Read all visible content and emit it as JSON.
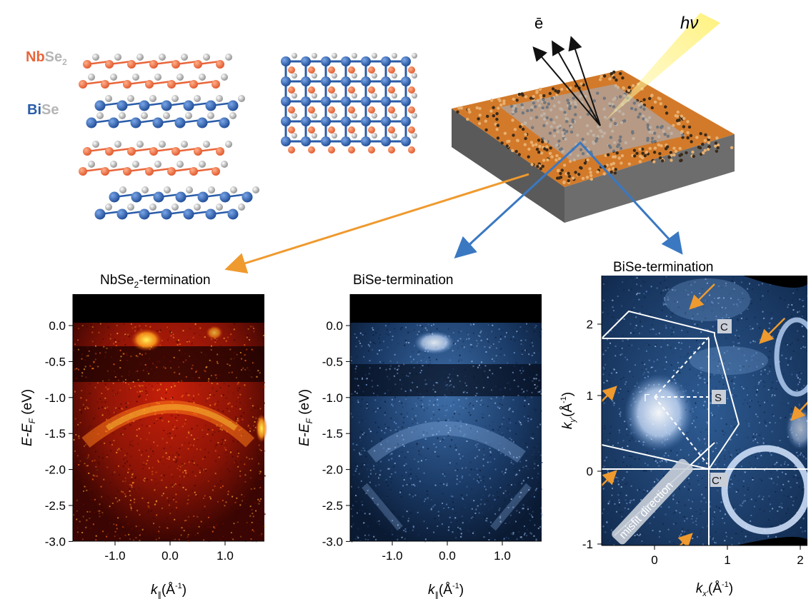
{
  "structure": {
    "nb_label": "Nb",
    "se_label_1": "Se",
    "se_sub": "2",
    "bi_label": "Bi",
    "se_label_2": "Se"
  },
  "schematic": {
    "electron": "ē",
    "photon": "hν"
  },
  "panels": {
    "p1": {
      "title_a": "NbSe",
      "title_sub": "2",
      "title_b": "-termination"
    },
    "p2": {
      "title": "BiSe-termination"
    },
    "p3": {
      "title": "BiSe-termination"
    }
  },
  "axes": {
    "energy_ylabel": "E-E",
    "energy_ylabel_sub": "F",
    "energy_ylabel_unit": " (eV)",
    "k_xlabel": "k",
    "k_xlabel_sub": "∥",
    "k_xlabel_unit": "(Å",
    "k_xlabel_exp": "-1",
    "k_xlabel_close": ")",
    "energy_ticks": [
      "0.0",
      "-0.5",
      "-1.0",
      "-1.5",
      "-2.0",
      "-2.5",
      "-3.0"
    ],
    "k_ticks": [
      "-1.0",
      "0.0",
      "1.0"
    ],
    "kx_label": "k",
    "kx_sub": "x'",
    "kx_unit": "(Å",
    "kx_exp": "-1",
    "kx_close": ")",
    "ky_label": "k",
    "ky_sub": "y'",
    "ky_unit": "(Å",
    "ky_exp": "-1",
    "ky_close": ")",
    "kx_ticks": [
      "0",
      "1",
      "2"
    ],
    "ky_ticks": [
      "2",
      "1",
      "0",
      "-1"
    ]
  },
  "bz_points": {
    "C": "C",
    "S": "S",
    "Gamma": "Γ",
    "Cprime": "C'"
  },
  "misfit": "misfit direction",
  "colors": {
    "nb_orange": "#e8653a",
    "bi_blue": "#2a5ca8",
    "se_gray": "#bdbdbd",
    "arrow_orange": "#ef9a2e",
    "arrow_blue": "#3a78c2"
  }
}
